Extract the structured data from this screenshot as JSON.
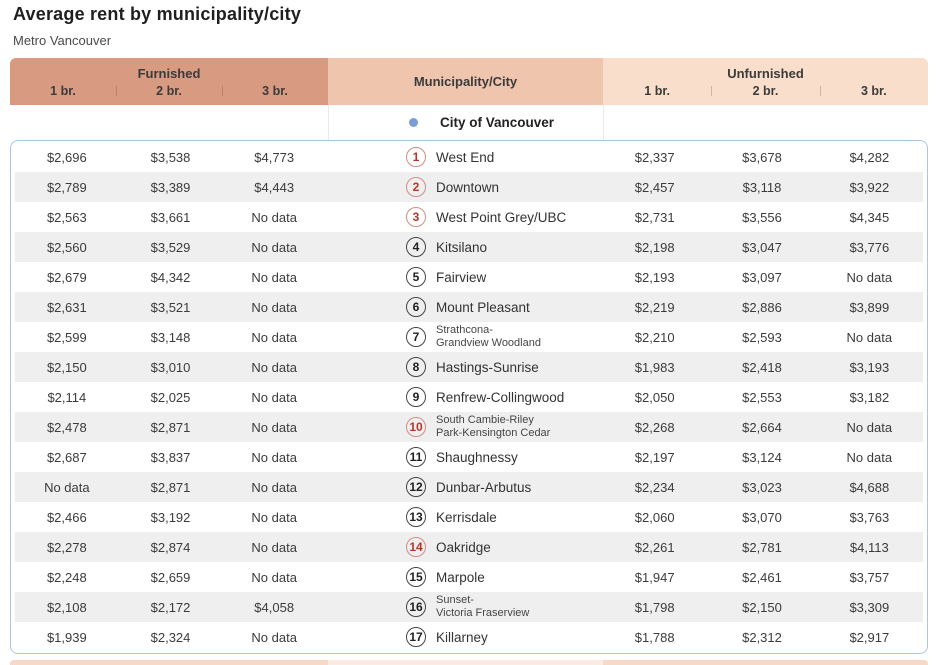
{
  "page": {
    "title": "Average rent by municipality/city",
    "subtitle": "Metro Vancouver"
  },
  "table": {
    "groups": {
      "furnished": "Furnished",
      "municipality": "Municipality/City",
      "unfurnished": "Unfurnished"
    },
    "sub_columns": [
      "1 br.",
      "2 br.",
      "3 br."
    ],
    "section_header": "City of Vancouver",
    "no_data_label": "No data",
    "colors": {
      "furnished_header": "#d89a81",
      "municipality_header": "#efc5ae",
      "unfurnished_header": "#f9dfcb",
      "row_alt": "#efefef",
      "container_border": "#a9c7e2",
      "red_accent": "#b8352b",
      "red_border": "#d28d84",
      "city_dot": "#7b9ed6"
    },
    "rows": [
      {
        "num": "1",
        "accent": "red",
        "name": "West End",
        "name2": "",
        "furnished": [
          "$2,696",
          "$3,538",
          "$4,773"
        ],
        "unfurnished": [
          "$2,337",
          "$3,678",
          "$4,282"
        ]
      },
      {
        "num": "2",
        "accent": "red",
        "name": "Downtown",
        "name2": "",
        "furnished": [
          "$2,789",
          "$3,389",
          "$4,443"
        ],
        "unfurnished": [
          "$2,457",
          "$3,118",
          "$3,922"
        ]
      },
      {
        "num": "3",
        "accent": "red",
        "name": "West Point Grey/UBC",
        "name2": "",
        "furnished": [
          "$2,563",
          "$3,661",
          "No data"
        ],
        "unfurnished": [
          "$2,731",
          "$3,556",
          "$4,345"
        ]
      },
      {
        "num": "4",
        "accent": "dark",
        "name": "Kitsilano",
        "name2": "",
        "furnished": [
          "$2,560",
          "$3,529",
          "No data"
        ],
        "unfurnished": [
          "$2,198",
          "$3,047",
          "$3,776"
        ]
      },
      {
        "num": "5",
        "accent": "dark",
        "name": "Fairview",
        "name2": "",
        "furnished": [
          "$2,679",
          "$4,342",
          "No data"
        ],
        "unfurnished": [
          "$2,193",
          "$3,097",
          "No data"
        ]
      },
      {
        "num": "6",
        "accent": "dark",
        "name": "Mount Pleasant",
        "name2": "",
        "furnished": [
          "$2,631",
          "$3,521",
          "No data"
        ],
        "unfurnished": [
          "$2,219",
          "$2,886",
          "$3,899"
        ]
      },
      {
        "num": "7",
        "accent": "dark",
        "name": "Strathcona-",
        "name2": "Grandview Woodland",
        "furnished": [
          "$2,599",
          "$3,148",
          "No data"
        ],
        "unfurnished": [
          "$2,210",
          "$2,593",
          "No data"
        ]
      },
      {
        "num": "8",
        "accent": "dark",
        "name": "Hastings-Sunrise",
        "name2": "",
        "furnished": [
          "$2,150",
          "$3,010",
          "No data"
        ],
        "unfurnished": [
          "$1,983",
          "$2,418",
          "$3,193"
        ]
      },
      {
        "num": "9",
        "accent": "dark",
        "name": "Renfrew-Collingwood",
        "name2": "",
        "furnished": [
          "$2,114",
          "$2,025",
          "No data"
        ],
        "unfurnished": [
          "$2,050",
          "$2,553",
          "$3,182"
        ]
      },
      {
        "num": "10",
        "accent": "red",
        "name": "South Cambie-Riley",
        "name2": "Park-Kensington Cedar",
        "furnished": [
          "$2,478",
          "$2,871",
          "No data"
        ],
        "unfurnished": [
          "$2,268",
          "$2,664",
          "No data"
        ]
      },
      {
        "num": "11",
        "accent": "dark",
        "name": "Shaughnessy",
        "name2": "",
        "furnished": [
          "$2,687",
          "$3,837",
          "No data"
        ],
        "unfurnished": [
          "$2,197",
          "$3,124",
          "No data"
        ]
      },
      {
        "num": "12",
        "accent": "dark",
        "name": "Dunbar-Arbutus",
        "name2": "",
        "furnished": [
          "No data",
          "$2,871",
          "No data"
        ],
        "unfurnished": [
          "$2,234",
          "$3,023",
          "$4,688"
        ]
      },
      {
        "num": "13",
        "accent": "dark",
        "name": "Kerrisdale",
        "name2": "",
        "furnished": [
          "$2,466",
          "$3,192",
          "No data"
        ],
        "unfurnished": [
          "$2,060",
          "$3,070",
          "$3,763"
        ]
      },
      {
        "num": "14",
        "accent": "red",
        "name": "Oakridge",
        "name2": "",
        "furnished": [
          "$2,278",
          "$2,874",
          "No data"
        ],
        "unfurnished": [
          "$2,261",
          "$2,781",
          "$4,113"
        ]
      },
      {
        "num": "15",
        "accent": "dark",
        "name": "Marpole",
        "name2": "",
        "furnished": [
          "$2,248",
          "$2,659",
          "No data"
        ],
        "unfurnished": [
          "$1,947",
          "$2,461",
          "$3,757"
        ]
      },
      {
        "num": "16",
        "accent": "dark",
        "name": "Sunset-",
        "name2": "Victoria Fraserview",
        "furnished": [
          "$2,108",
          "$2,172",
          "$4,058"
        ],
        "unfurnished": [
          "$1,798",
          "$2,150",
          "$3,309"
        ]
      },
      {
        "num": "17",
        "accent": "dark",
        "name": "Killarney",
        "name2": "",
        "furnished": [
          "$1,939",
          "$2,324",
          "No data"
        ],
        "unfurnished": [
          "$1,788",
          "$2,312",
          "$2,917"
        ]
      }
    ]
  }
}
